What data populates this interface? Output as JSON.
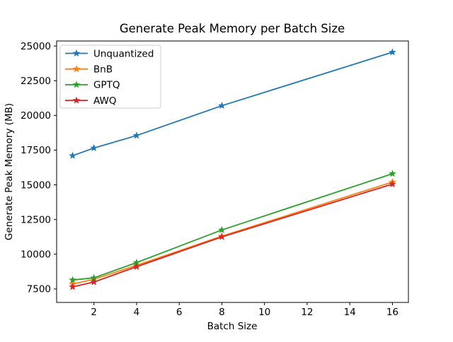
{
  "chart_data": {
    "type": "line",
    "title": "Generate Peak Memory per Batch Size",
    "xlabel": "Batch Size",
    "ylabel": "Generate Peak Memory (MB)",
    "x": [
      1,
      2,
      4,
      8,
      16
    ],
    "series": [
      {
        "name": "Unquantized",
        "color": "#1f77b4",
        "values": [
          17100,
          17650,
          18550,
          20700,
          24550
        ]
      },
      {
        "name": "BnB",
        "color": "#ff7f0e",
        "values": [
          7850,
          8200,
          9200,
          11300,
          15200
        ]
      },
      {
        "name": "GPTQ",
        "color": "#2ca02c",
        "values": [
          8150,
          8300,
          9400,
          11750,
          15800
        ]
      },
      {
        "name": "AWQ",
        "color": "#d62728",
        "values": [
          7650,
          8000,
          9100,
          11250,
          15050
        ]
      }
    ],
    "x_ticks": [
      2,
      4,
      6,
      8,
      10,
      12,
      14,
      16
    ],
    "y_ticks": [
      7500,
      10000,
      12500,
      15000,
      17500,
      20000,
      22500,
      25000
    ],
    "xlim": [
      0.25,
      16.75
    ],
    "ylim": [
      6530,
      25360
    ],
    "grid": false,
    "marker": "star",
    "legend_position": "upper left",
    "colors": {
      "spine": "#000000",
      "figure_background": "#ffffff",
      "axes_background": "#ffffff",
      "legend_border": "#cccccc",
      "legend_background": "#ffffff"
    }
  }
}
